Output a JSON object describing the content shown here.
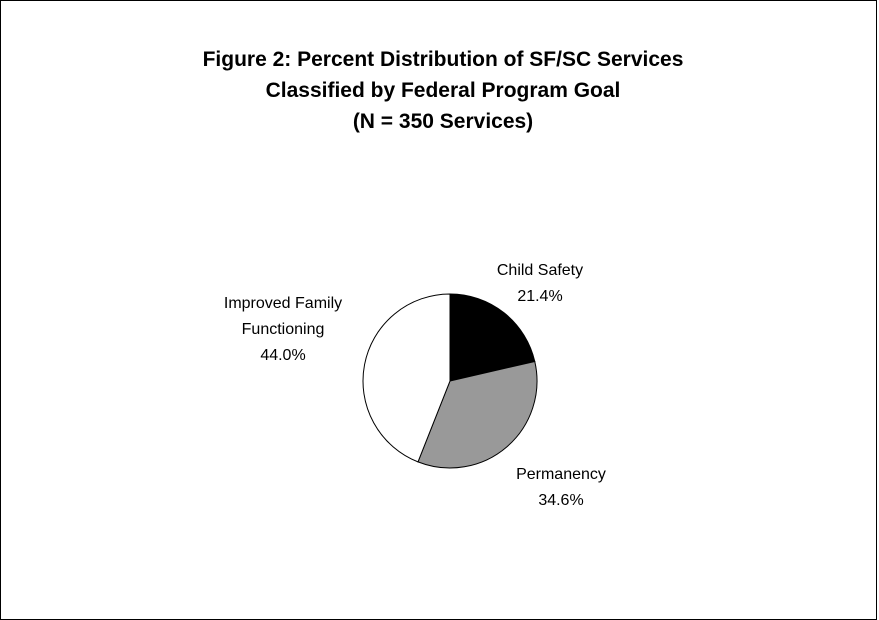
{
  "chart_data": {
    "type": "pie",
    "title": [
      "Figure 2: Percent Distribution of SF/SC Services",
      "Classified by Federal Program Goal",
      "(N = 350 Services)"
    ],
    "categories": [
      "Child Safety",
      "Permanency",
      "Improved Family Functioning"
    ],
    "values": [
      21.4,
      34.6,
      44.0
    ],
    "value_labels": [
      "21.4%",
      "34.6%",
      "44.0%"
    ],
    "colors": [
      "#000000",
      "#999999",
      "#ffffff"
    ]
  }
}
